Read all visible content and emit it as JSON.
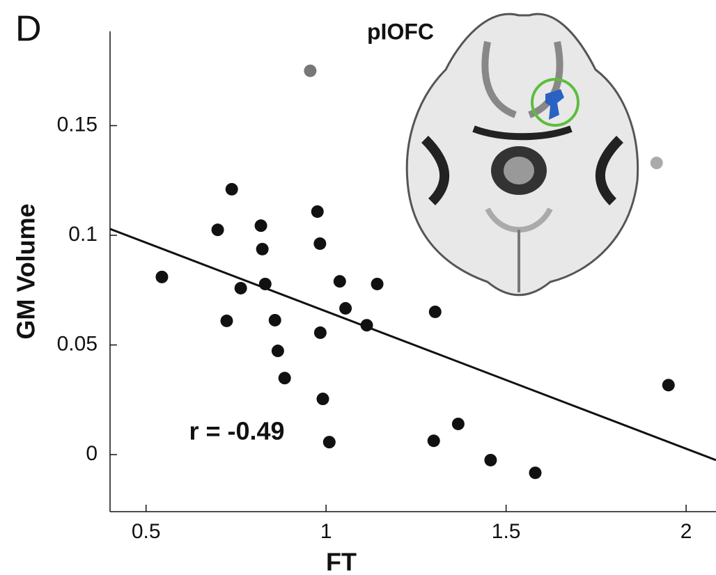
{
  "chart_data": {
    "type": "scatter",
    "panel_label": "D",
    "title": "pIOFC",
    "xlabel": "FT",
    "ylabel": "GM Volume",
    "annotation": "r = -0.49",
    "xlim": [
      0.4,
      2.083
    ],
    "ylim": [
      -0.026,
      0.193
    ],
    "xticks": [
      0.5,
      1,
      1.5,
      2
    ],
    "yticks": [
      0,
      0.05,
      0.1,
      0.15
    ],
    "x": [
      0.956,
      1.918,
      0.738,
      0.699,
      0.819,
      0.976,
      0.823,
      0.983,
      0.544,
      0.763,
      0.831,
      1.038,
      1.142,
      1.054,
      0.724,
      0.858,
      1.113,
      1.303,
      0.984,
      0.866,
      0.885,
      0.991,
      1.009,
      1.299,
      1.367,
      1.457,
      1.581,
      1.951
    ],
    "y": [
      0.175,
      0.133,
      0.121,
      0.1025,
      0.1044,
      0.1108,
      0.0937,
      0.0962,
      0.081,
      0.0759,
      0.0778,
      0.079,
      0.0778,
      0.0667,
      0.061,
      0.0613,
      0.059,
      0.0651,
      0.0556,
      0.0473,
      0.0349,
      0.0254,
      0.0057,
      0.0063,
      0.014,
      -0.0025,
      -0.0083,
      0.0317
    ],
    "colors": [
      "#777777",
      "#aaaaaa",
      "#111111",
      "#111111",
      "#111111",
      "#111111",
      "#111111",
      "#111111",
      "#111111",
      "#111111",
      "#111111",
      "#111111",
      "#111111",
      "#111111",
      "#111111",
      "#111111",
      "#111111",
      "#111111",
      "#111111",
      "#111111",
      "#111111",
      "#111111",
      "#111111",
      "#111111",
      "#111111",
      "#111111",
      "#111111",
      "#111111"
    ],
    "fit_line": {
      "x": [
        0.4,
        2.083
      ],
      "y": [
        0.1029,
        -0.0025
      ],
      "color": "#111111"
    }
  }
}
